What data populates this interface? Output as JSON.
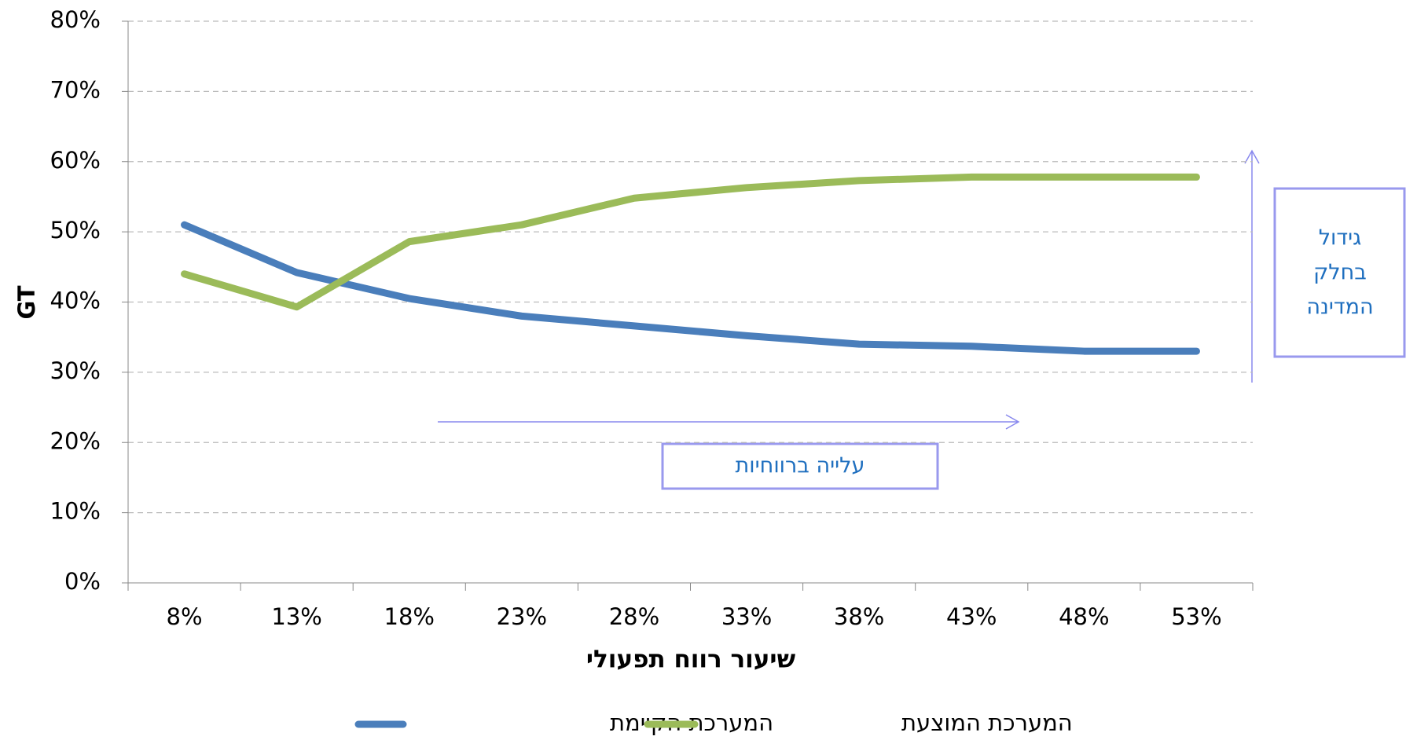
{
  "chart_data": {
    "type": "line",
    "ylabel": "GT",
    "xlabel": "שיעור רווח תפעולי",
    "categories": [
      "8%",
      "13%",
      "18%",
      "23%",
      "28%",
      "33%",
      "38%",
      "43%",
      "48%",
      "53%"
    ],
    "series": [
      {
        "name": "המערכת הקיימת",
        "color": "#4a7ebb",
        "values": [
          51,
          44.2,
          40.5,
          38,
          36.6,
          35.2,
          34,
          33.7,
          33,
          33
        ]
      },
      {
        "name": "המערכת המוצעת",
        "color": "#9bbb59",
        "values": [
          44,
          39.3,
          48.6,
          51,
          54.8,
          56.3,
          57.3,
          57.8,
          57.8,
          57.8
        ]
      }
    ],
    "ylim": [
      0,
      80
    ],
    "yticks": [
      {
        "value": 0,
        "label": "0%"
      },
      {
        "value": 10,
        "label": "10%"
      },
      {
        "value": 20,
        "label": "20%"
      },
      {
        "value": 30,
        "label": "30%"
      },
      {
        "value": 40,
        "label": "40%"
      },
      {
        "value": 50,
        "label": "50%"
      },
      {
        "value": 60,
        "label": "60%"
      },
      {
        "value": 70,
        "label": "70%"
      },
      {
        "value": 80,
        "label": "80%"
      }
    ],
    "grid": true,
    "annotations": [
      {
        "lines": [
          "עלייה ברווחיות"
        ]
      },
      {
        "lines": [
          "גידול",
          "בחלק",
          "המדינה"
        ]
      }
    ]
  }
}
